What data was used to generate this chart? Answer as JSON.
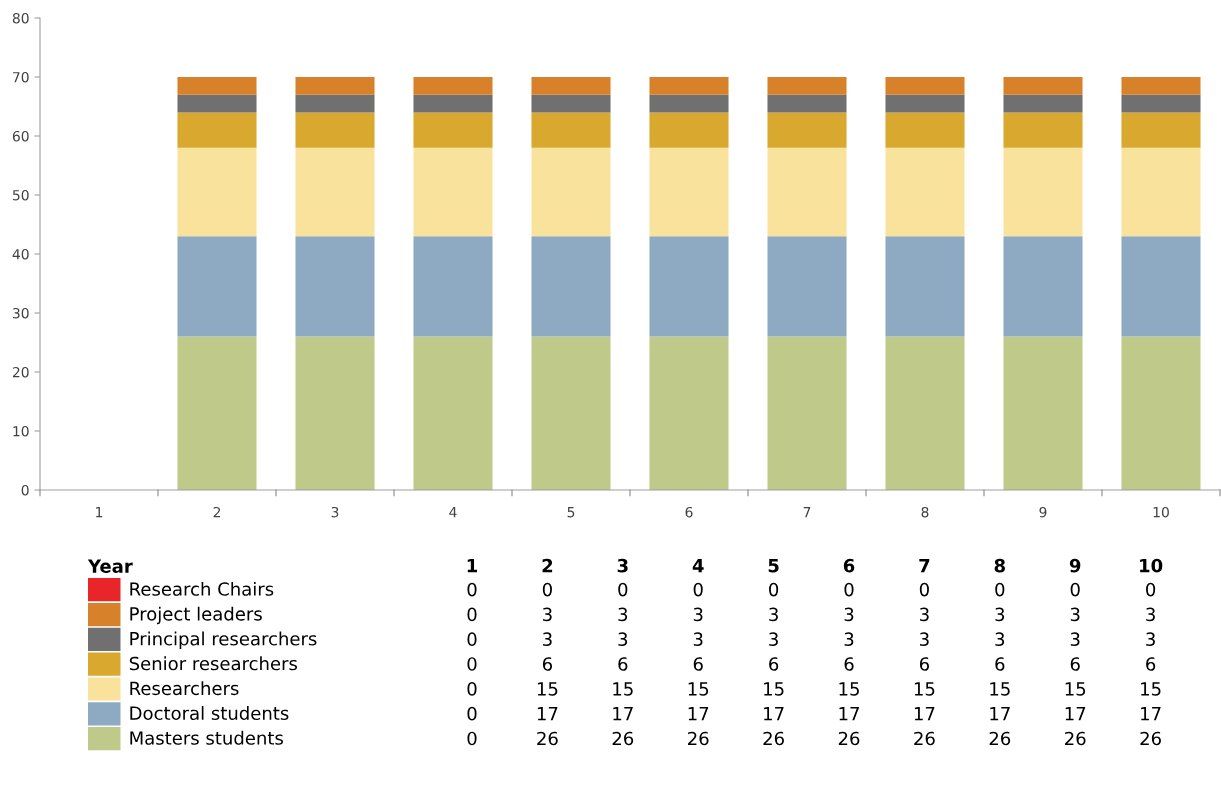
{
  "chart_data": [
    {
      "type": "bar",
      "stacked": true,
      "legend": "bottom",
      "legend_title": "Year",
      "grid": false,
      "categories": [
        "1",
        "2",
        "3",
        "4",
        "5",
        "6",
        "7",
        "8",
        "9",
        "10"
      ],
      "ylim": [
        0,
        80
      ],
      "yticks": [
        0,
        10,
        20,
        30,
        40,
        50,
        60,
        70,
        80
      ],
      "series": [
        {
          "name": "Masters students",
          "color": "#bfc98a",
          "values": [
            0,
            26,
            26,
            26,
            26,
            26,
            26,
            26,
            26,
            26
          ]
        },
        {
          "name": "Doctoral students",
          "color": "#8eaac2",
          "values": [
            0,
            17,
            17,
            17,
            17,
            17,
            17,
            17,
            17,
            17
          ]
        },
        {
          "name": "Researchers",
          "color": "#f9e29c",
          "values": [
            0,
            15,
            15,
            15,
            15,
            15,
            15,
            15,
            15,
            15
          ]
        },
        {
          "name": "Senior researchers",
          "color": "#d9a82e",
          "values": [
            0,
            6,
            6,
            6,
            6,
            6,
            6,
            6,
            6,
            6
          ]
        },
        {
          "name": "Principal researchers",
          "color": "#707070",
          "values": [
            0,
            3,
            3,
            3,
            3,
            3,
            3,
            3,
            3,
            3
          ]
        },
        {
          "name": "Project leaders",
          "color": "#d7822b",
          "values": [
            0,
            3,
            3,
            3,
            3,
            3,
            3,
            3,
            3,
            3
          ]
        },
        {
          "name": "Research Chairs",
          "color": "#e8262a",
          "values": [
            0,
            0,
            0,
            0,
            0,
            0,
            0,
            0,
            0,
            0
          ]
        }
      ]
    },
    {
      "type": "heatmap",
      "data_labels": true,
      "categories": [
        "1",
        "2",
        "3",
        "4",
        "5",
        "6",
        "7",
        "8",
        "9",
        "10"
      ],
      "y_categories": [
        null,
        null,
        null,
        null,
        null,
        null,
        null
      ],
      "cells": [
        [
          0,
          0,
          0,
          0,
          0,
          0,
          0,
          0,
          0,
          0
        ],
        [
          0,
          3,
          3,
          3,
          3,
          3,
          3,
          3,
          3,
          3
        ],
        [
          0,
          3,
          3,
          3,
          3,
          3,
          3,
          3,
          3,
          3
        ],
        [
          0,
          6,
          6,
          6,
          6,
          6,
          6,
          6,
          6,
          6
        ],
        [
          0,
          15,
          15,
          15,
          15,
          15,
          15,
          15,
          15,
          15
        ],
        [
          0,
          17,
          17,
          17,
          17,
          17,
          17,
          17,
          17,
          17
        ],
        [
          0,
          26,
          26,
          26,
          26,
          26,
          26,
          26,
          26,
          26
        ]
      ]
    }
  ]
}
